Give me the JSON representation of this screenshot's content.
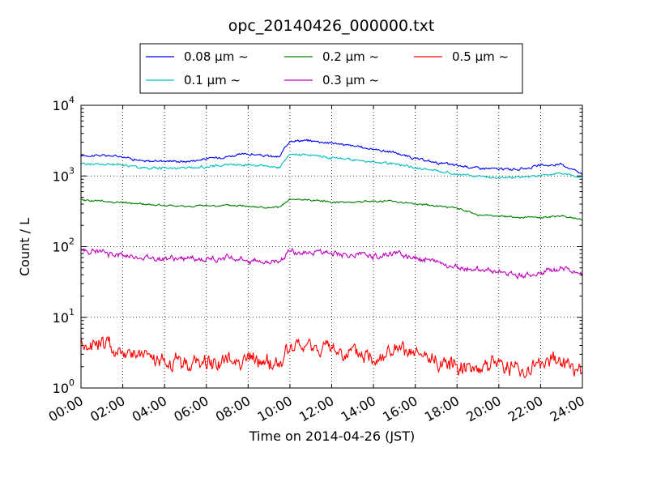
{
  "chart_data": {
    "type": "line",
    "title": "opc_20140426_000000.txt",
    "xlabel": "Time on 2014-04-26 (JST)",
    "ylabel": "Count / L",
    "yscale": "log",
    "xlim": [
      "00:00",
      "24:00"
    ],
    "ylim": [
      1,
      10000
    ],
    "grid": true,
    "legend_position": "top",
    "x_ticks": [
      "00:00",
      "02:00",
      "04:00",
      "06:00",
      "08:00",
      "10:00",
      "12:00",
      "14:00",
      "16:00",
      "18:00",
      "20:00",
      "22:00",
      "24:00"
    ],
    "y_ticks": [
      {
        "base": "10",
        "exp": "0",
        "value": 1
      },
      {
        "base": "10",
        "exp": "1",
        "value": 10
      },
      {
        "base": "10",
        "exp": "2",
        "value": 100
      },
      {
        "base": "10",
        "exp": "3",
        "value": 1000
      },
      {
        "base": "10",
        "exp": "4",
        "value": 10000
      }
    ],
    "x": [
      "00:00",
      "01:00",
      "02:00",
      "03:00",
      "04:00",
      "05:00",
      "06:00",
      "07:00",
      "08:00",
      "09:00",
      "09:30",
      "10:00",
      "11:00",
      "12:00",
      "13:00",
      "14:00",
      "15:00",
      "16:00",
      "17:00",
      "18:00",
      "19:00",
      "20:00",
      "21:00",
      "22:00",
      "23:00",
      "24:00"
    ],
    "series": [
      {
        "name": "0.08 μm ~",
        "color": "#0000ff",
        "noise": 0.01,
        "values": [
          1950,
          1950,
          1900,
          1600,
          1650,
          1600,
          1750,
          1900,
          2050,
          1900,
          1850,
          3200,
          3150,
          2950,
          2650,
          2400,
          2150,
          1750,
          1550,
          1400,
          1300,
          1250,
          1250,
          1400,
          1450,
          1100
        ]
      },
      {
        "name": "0.1 μm ~",
        "color": "#00bfbf",
        "noise": 0.01,
        "values": [
          1500,
          1450,
          1450,
          1300,
          1300,
          1300,
          1350,
          1450,
          1450,
          1400,
          1300,
          2000,
          2000,
          1800,
          1700,
          1550,
          1500,
          1300,
          1200,
          1050,
          1000,
          950,
          950,
          1000,
          1100,
          950
        ]
      },
      {
        "name": "0.2 μm ~",
        "color": "#008000",
        "noise": 0.008,
        "values": [
          460,
          440,
          420,
          400,
          380,
          370,
          380,
          380,
          380,
          350,
          360,
          460,
          460,
          430,
          430,
          440,
          440,
          400,
          380,
          350,
          280,
          270,
          260,
          255,
          275,
          240
        ]
      },
      {
        "name": "0.3 μm ~",
        "color": "#bf00bf",
        "noise": 0.025,
        "values": [
          90,
          82,
          75,
          70,
          68,
          67,
          66,
          70,
          65,
          60,
          65,
          85,
          85,
          82,
          75,
          72,
          80,
          72,
          60,
          50,
          48,
          44,
          40,
          42,
          50,
          40
        ]
      },
      {
        "name": "0.5 μm ~",
        "color": "#ff0000",
        "noise": 0.07,
        "values": [
          4.2,
          4.3,
          3.3,
          2.8,
          2.2,
          2.2,
          2.3,
          2.4,
          2.6,
          2.2,
          2.2,
          3.6,
          3.8,
          3.5,
          3.0,
          2.8,
          3.3,
          2.8,
          2.4,
          2.2,
          2.0,
          2.4,
          1.7,
          2.2,
          2.6,
          1.5
        ]
      }
    ]
  }
}
